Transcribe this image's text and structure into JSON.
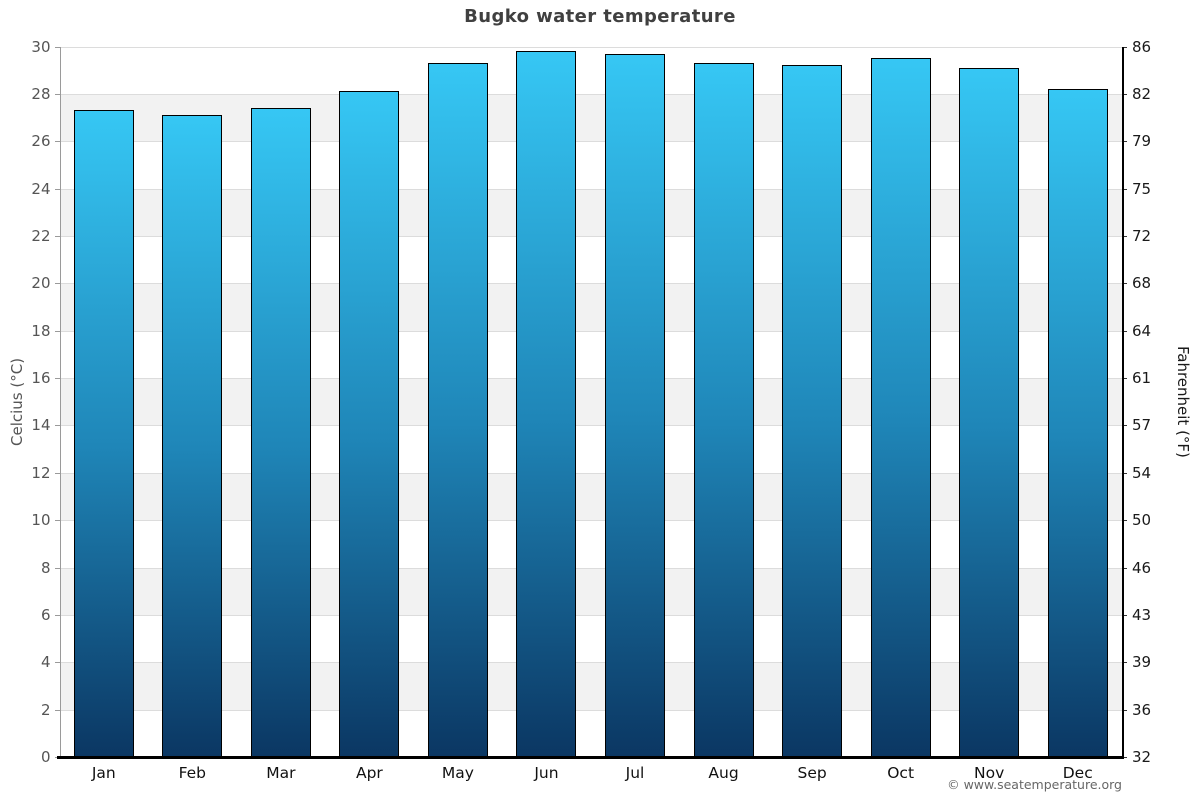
{
  "title": "Bugko water temperature",
  "footer": "© www.seatemperature.org",
  "axes": {
    "left_label": "Celcius (°C)",
    "right_label": "Fahrenheit (°F)",
    "celsius_ticks": [
      0,
      2,
      4,
      6,
      8,
      10,
      12,
      14,
      16,
      18,
      20,
      22,
      24,
      26,
      28,
      30
    ],
    "fahrenheit_ticks": [
      32,
      36,
      39,
      43,
      46,
      50,
      54,
      57,
      61,
      64,
      68,
      72,
      75,
      79,
      82,
      86
    ]
  },
  "chart_data": {
    "type": "bar",
    "title": "Bugko water temperature",
    "categories": [
      "Jan",
      "Feb",
      "Mar",
      "Apr",
      "May",
      "Jun",
      "Jul",
      "Aug",
      "Sep",
      "Oct",
      "Nov",
      "Dec"
    ],
    "values": [
      27.3,
      27.1,
      27.4,
      28.1,
      29.3,
      29.8,
      29.7,
      29.3,
      29.2,
      29.5,
      29.1,
      28.2
    ],
    "xlabel": "",
    "ylabel": "Celcius (°C)",
    "ylabel_secondary": "Fahrenheit (°F)",
    "ylim": [
      0,
      30
    ],
    "ylim_secondary": [
      32,
      86
    ],
    "grid": "horizontal alternating bands every 2°C",
    "legend_position": "none"
  },
  "colors": {
    "bar_top": "#36c7f4",
    "bar_mid": "#1f86b8",
    "bar_bottom": "#0b3763",
    "bar_border": "#000000",
    "band_gray": "#f2f2f2",
    "gridline": "#dcdcdc",
    "title_text": "#404040",
    "left_axis_text": "#555555",
    "right_axis_text": "#1a1a1a",
    "month_text": "#111111",
    "footer_text": "#666666"
  }
}
